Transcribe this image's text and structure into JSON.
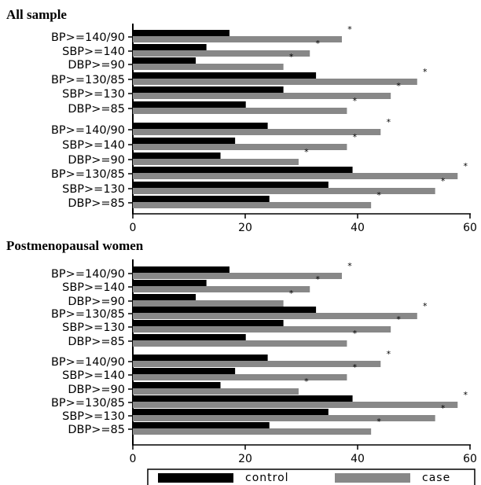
{
  "colors": {
    "control": "#000000",
    "case": "#888888",
    "axis": "#000000"
  },
  "chart_data": [
    {
      "type": "bar",
      "orientation": "horizontal",
      "title": "All sample",
      "categories": [
        "BP>=140/90",
        "SBP>=140",
        "DBP>=90",
        "BP>=130/85",
        "SBP>=130",
        "DBP>=85",
        "BP>=140/90",
        "SBP>=140",
        "DBP>=90",
        "BP>=130/85",
        "SBP>=130",
        "DBP>=85"
      ],
      "series": [
        {
          "name": "control",
          "values": [
            17.2,
            13.1,
            11.2,
            32.6,
            26.8,
            20.1,
            24.0,
            18.2,
            15.6,
            39.1,
            34.8,
            24.3
          ]
        },
        {
          "name": "case",
          "values": [
            37.2,
            31.5,
            26.8,
            50.6,
            45.9,
            38.1,
            44.1,
            38.1,
            29.5,
            57.8,
            53.8,
            42.4
          ]
        }
      ],
      "annotations": [
        "*",
        "*",
        "*",
        "*",
        "*",
        "*",
        "*",
        "*",
        "*",
        "*",
        "*",
        "*"
      ],
      "xticks": [
        0,
        20,
        40,
        60
      ],
      "xlim": [
        0,
        60
      ],
      "xlabel": "",
      "ylabel": "",
      "grid": false
    },
    {
      "type": "bar",
      "orientation": "horizontal",
      "title": "Postmenopausal women",
      "categories": [
        "BP>=140/90",
        "SBP>=140",
        "DBP>=90",
        "BP>=130/85",
        "SBP>=130",
        "DBP>=85",
        "BP>=140/90",
        "SBP>=140",
        "DBP>=90",
        "BP>=130/85",
        "SBP>=130",
        "DBP>=85"
      ],
      "series": [
        {
          "name": "control",
          "values": [
            17.2,
            13.1,
            11.2,
            32.6,
            26.8,
            20.1,
            24.0,
            18.2,
            15.6,
            39.1,
            34.8,
            24.3
          ]
        },
        {
          "name": "case",
          "values": [
            37.2,
            31.5,
            26.8,
            50.6,
            45.9,
            38.1,
            44.1,
            38.1,
            29.5,
            57.8,
            53.8,
            42.4
          ]
        }
      ],
      "annotations": [
        "*",
        "*",
        "*",
        "*",
        "*",
        "*",
        "*",
        "*",
        "*",
        "*",
        "*",
        "*"
      ],
      "xticks": [
        0,
        20,
        40,
        60
      ],
      "xlim": [
        0,
        60
      ],
      "xlabel": "",
      "ylabel": "",
      "grid": false
    }
  ],
  "legend": {
    "placement": "bottom",
    "items": [
      {
        "label": "control",
        "color": "#000000"
      },
      {
        "label": "case",
        "color": "#888888"
      }
    ]
  }
}
